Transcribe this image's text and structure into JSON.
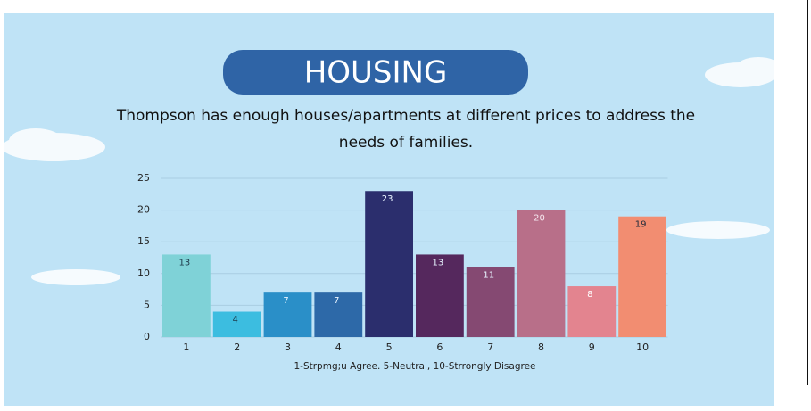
{
  "chart_data": {
    "type": "bar",
    "title": "HOUSING",
    "subtitle": [
      "Thompson has enough houses/apartments at different prices to address the",
      "needs of families."
    ],
    "x_label": "1-Strpmg;u Agree. 5-Neutral, 10-Strrongly Disagree",
    "categories": [
      "1",
      "2",
      "3",
      "4",
      "5",
      "6",
      "7",
      "8",
      "9",
      "10"
    ],
    "values": [
      13,
      4,
      7,
      7,
      23,
      13,
      11,
      20,
      8,
      19
    ],
    "colors": [
      "#7fd2d7",
      "#3cbde0",
      "#2a8fc8",
      "#2d69a8",
      "#2b2e6d",
      "#55285d",
      "#854972",
      "#b86f89",
      "#e3848f",
      "#f28d71"
    ],
    "value_label_colors": [
      "#1e3a4a",
      "#1e3a4a",
      "#e8f4ff",
      "#e8f4ff",
      "#e8f4ff",
      "#e8f4ff",
      "#e8f4ff",
      "#f5e6ee",
      "#ffffff",
      "#1e2a3a"
    ],
    "ylim": [
      0,
      25
    ],
    "yticks": [
      0,
      5,
      10,
      15,
      20,
      25
    ],
    "grid": true
  }
}
